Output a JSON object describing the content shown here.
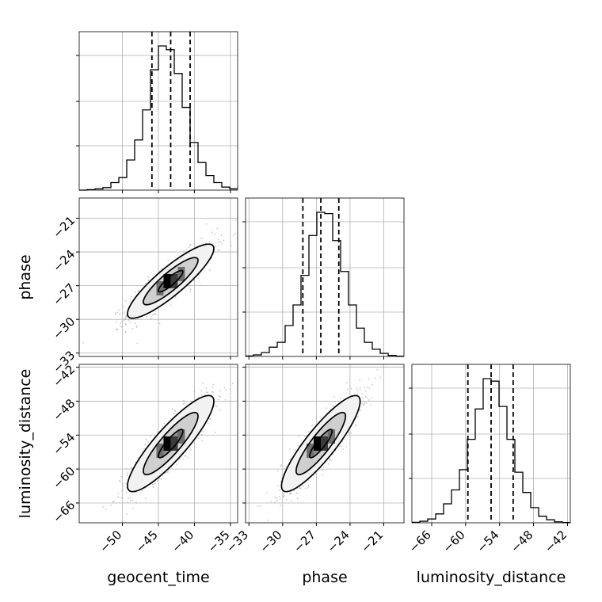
{
  "chart_data": {
    "type": "corner",
    "parameters": [
      "geocent_time",
      "phase",
      "luminosity_distance"
    ],
    "ranges": {
      "geocent_time": [
        -56,
        -34
      ],
      "phase": [
        -33.3,
        -19.2
      ],
      "luminosity_distance": [
        -69.5,
        -41.5
      ]
    },
    "ticks": {
      "geocent_time": {
        "values": [
          -50,
          -45,
          -40,
          -35
        ],
        "labels": [
          "−50",
          "−45",
          "−40",
          "−35"
        ]
      },
      "phase": {
        "values": [
          -33,
          -30,
          -27,
          -24,
          -21
        ],
        "labels": [
          "−33",
          "−30",
          "−27",
          "−24",
          "−21"
        ]
      },
      "luminosity_distance": {
        "values": [
          -66,
          -60,
          -54,
          -48,
          -42
        ],
        "labels": [
          "−66",
          "−60",
          "−54",
          "−48",
          "−42"
        ]
      }
    },
    "quantiles": {
      "geocent_time": [
        -45.9,
        -43.3,
        -40.6
      ],
      "phase": [
        -28.2,
        -26.6,
        -25.0
      ],
      "luminosity_distance": [
        -59.6,
        -55.5,
        -51.6
      ]
    },
    "histograms": {
      "geocent_time": {
        "edges_start": -56,
        "bin_width": 1.1,
        "counts": [
          0,
          2,
          5,
          10,
          30,
          50,
          120,
          200,
          320,
          480,
          575,
          560,
          465,
          330,
          190,
          110,
          58,
          30,
          12,
          5
        ]
      },
      "phase": {
        "edges_start": -33.3,
        "bin_width": 0.705,
        "counts": [
          2,
          6,
          15,
          36,
          55,
          120,
          200,
          315,
          470,
          560,
          555,
          450,
          330,
          200,
          110,
          55,
          28,
          12,
          4,
          1
        ]
      },
      "luminosity_distance": {
        "edges_start": -69.5,
        "bin_width": 1.4,
        "counts": [
          2,
          6,
          15,
          35,
          75,
          130,
          210,
          330,
          450,
          570,
          560,
          460,
          330,
          200,
          120,
          60,
          26,
          12,
          4,
          1
        ]
      }
    },
    "pairs": [
      {
        "x": "geocent_time",
        "y": "phase",
        "center": [
          -43.3,
          -26.6
        ],
        "contours": [
          {
            "sx": 1.7,
            "sy": 0.95,
            "rho": 0.88
          },
          {
            "sx": 3.8,
            "sy": 2.1,
            "rho": 0.88
          },
          {
            "sx": 6.0,
            "sy": 3.3,
            "rho": 0.88
          }
        ]
      },
      {
        "x": "geocent_time",
        "y": "luminosity_distance",
        "center": [
          -43.3,
          -55.5
        ],
        "contours": [
          {
            "sx": 1.7,
            "sy": 2.5,
            "rho": 0.88
          },
          {
            "sx": 3.8,
            "sy": 5.5,
            "rho": 0.88
          },
          {
            "sx": 6.0,
            "sy": 8.5,
            "rho": 0.88
          }
        ]
      },
      {
        "x": "phase",
        "y": "luminosity_distance",
        "center": [
          -26.6,
          -55.5
        ],
        "contours": [
          {
            "sx": 1.0,
            "sy": 2.5,
            "rho": 0.88
          },
          {
            "sx": 2.2,
            "sy": 5.5,
            "rho": 0.88
          },
          {
            "sx": 3.5,
            "sy": 8.5,
            "rho": 0.88
          }
        ]
      }
    ],
    "grid": true,
    "line_color": "#000000",
    "scatter_color": "#9e9e9e",
    "density_colormap": "greys",
    "grid_color": "#b0b0b0"
  }
}
